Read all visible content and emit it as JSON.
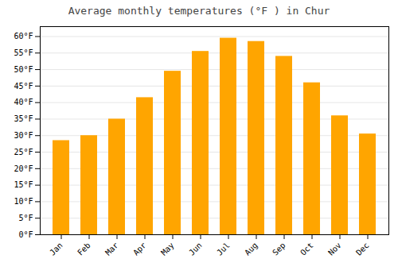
{
  "chart_data": {
    "type": "bar",
    "title": "Average monthly temperatures (°F ) in Chur",
    "categories": [
      "Jan",
      "Feb",
      "Mar",
      "Apr",
      "May",
      "Jun",
      "Jul",
      "Aug",
      "Sep",
      "Oct",
      "Nov",
      "Dec"
    ],
    "values": [
      28.5,
      30.0,
      35.0,
      41.5,
      49.5,
      55.5,
      59.5,
      58.5,
      54.0,
      46.0,
      36.0,
      30.5
    ],
    "color": "#FFA500",
    "ylim": [
      0,
      63
    ],
    "yticks": [
      {
        "value": 0,
        "label": "0°F"
      },
      {
        "value": 5,
        "label": "5°F"
      },
      {
        "value": 10,
        "label": "10°F"
      },
      {
        "value": 15,
        "label": "15°F"
      },
      {
        "value": 20,
        "label": "20°F"
      },
      {
        "value": 25,
        "label": "25°F"
      },
      {
        "value": 30,
        "label": "30°F"
      },
      {
        "value": 35,
        "label": "35°F"
      },
      {
        "value": 40,
        "label": "40°F"
      },
      {
        "value": 45,
        "label": "45°F"
      },
      {
        "value": 50,
        "label": "50°F"
      },
      {
        "value": 55,
        "label": "55°F"
      },
      {
        "value": 60,
        "label": "60°F"
      }
    ],
    "grid": true
  }
}
